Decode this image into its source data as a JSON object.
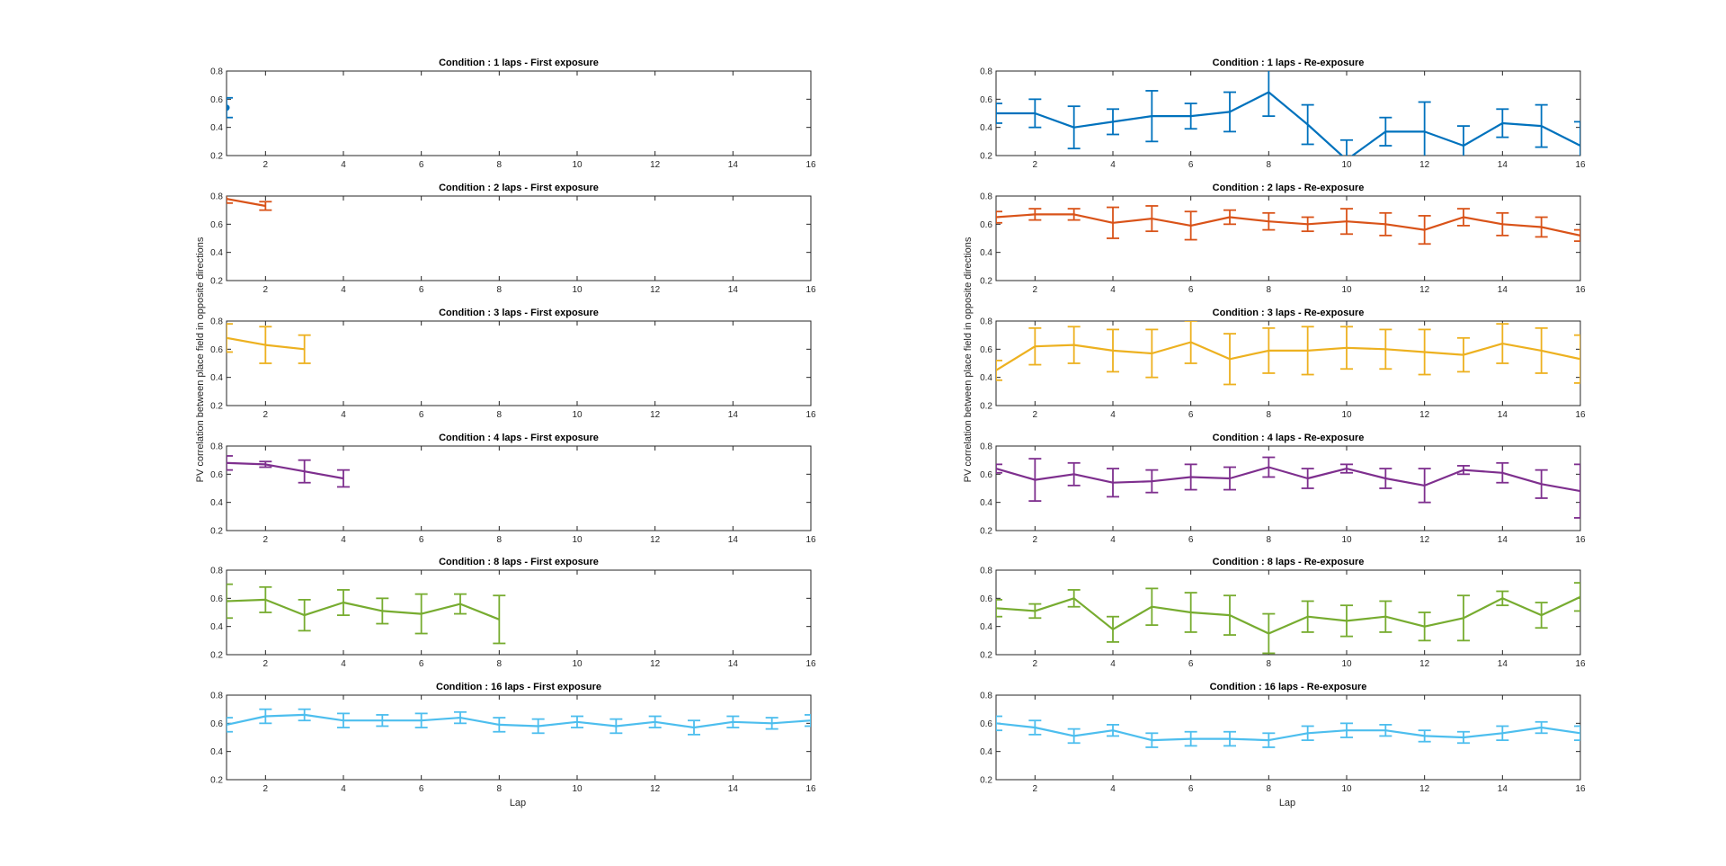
{
  "figure": {
    "ylabel": "PV correlation between place field in opposite directions",
    "xlabel": "Lap",
    "xlim": [
      1,
      16
    ],
    "ylim": [
      0.2,
      0.8
    ],
    "xticks": [
      2,
      4,
      6,
      8,
      10,
      12,
      14,
      16
    ],
    "yticks": [
      0.2,
      0.4,
      0.6,
      0.8
    ],
    "tick_labels_x": [
      "2",
      "4",
      "6",
      "8",
      "10",
      "12",
      "14",
      "16"
    ],
    "tick_labels_y": [
      "0.2",
      "0.4",
      "0.6",
      "0.8"
    ]
  },
  "chart_data": [
    {
      "type": "line",
      "title": "Condition : 1 laps - First exposure",
      "color": "#0072BD",
      "x": [
        1
      ],
      "y": [
        0.54
      ],
      "err": [
        0.07
      ],
      "xlim": [
        1,
        16
      ],
      "ylim": [
        0.2,
        0.8
      ]
    },
    {
      "type": "line",
      "title": "Condition : 1 laps - Re-exposure",
      "color": "#0072BD",
      "x": [
        1,
        2,
        3,
        4,
        5,
        6,
        7,
        8,
        9,
        10,
        11,
        12,
        13,
        14,
        15,
        16
      ],
      "y": [
        0.5,
        0.5,
        0.4,
        0.44,
        0.48,
        0.48,
        0.51,
        0.65,
        0.42,
        0.17,
        0.37,
        0.37,
        0.27,
        0.43,
        0.41,
        0.27
      ],
      "err": [
        0.07,
        0.1,
        0.15,
        0.09,
        0.18,
        0.09,
        0.14,
        0.17,
        0.14,
        0.14,
        0.1,
        0.21,
        0.14,
        0.1,
        0.15,
        0.17
      ],
      "xlim": [
        1,
        16
      ],
      "ylim": [
        0.2,
        0.8
      ]
    },
    {
      "type": "line",
      "title": "Condition : 2 laps - First exposure",
      "color": "#D95319",
      "x": [
        1,
        2
      ],
      "y": [
        0.78,
        0.73
      ],
      "err": [
        0.03,
        0.03
      ],
      "xlim": [
        1,
        16
      ],
      "ylim": [
        0.2,
        0.8
      ]
    },
    {
      "type": "line",
      "title": "Condition : 2 laps - Re-exposure",
      "color": "#D95319",
      "x": [
        1,
        2,
        3,
        4,
        5,
        6,
        7,
        8,
        9,
        10,
        11,
        12,
        13,
        14,
        15,
        16
      ],
      "y": [
        0.65,
        0.67,
        0.67,
        0.61,
        0.64,
        0.59,
        0.65,
        0.62,
        0.6,
        0.62,
        0.6,
        0.56,
        0.65,
        0.6,
        0.58,
        0.52
      ],
      "err": [
        0.04,
        0.04,
        0.04,
        0.11,
        0.09,
        0.1,
        0.05,
        0.06,
        0.05,
        0.09,
        0.08,
        0.1,
        0.06,
        0.08,
        0.07,
        0.04
      ],
      "xlim": [
        1,
        16
      ],
      "ylim": [
        0.2,
        0.8
      ]
    },
    {
      "type": "line",
      "title": "Condition : 3 laps - First exposure",
      "color": "#EDB120",
      "x": [
        1,
        2,
        3
      ],
      "y": [
        0.68,
        0.63,
        0.6
      ],
      "err": [
        0.1,
        0.13,
        0.1
      ],
      "xlim": [
        1,
        16
      ],
      "ylim": [
        0.2,
        0.8
      ]
    },
    {
      "type": "line",
      "title": "Condition : 3 laps - Re-exposure",
      "color": "#EDB120",
      "x": [
        1,
        2,
        3,
        4,
        5,
        6,
        7,
        8,
        9,
        10,
        11,
        12,
        13,
        14,
        15,
        16
      ],
      "y": [
        0.45,
        0.62,
        0.63,
        0.59,
        0.57,
        0.65,
        0.53,
        0.59,
        0.59,
        0.61,
        0.6,
        0.58,
        0.56,
        0.64,
        0.59,
        0.53
      ],
      "err": [
        0.07,
        0.13,
        0.13,
        0.15,
        0.17,
        0.15,
        0.18,
        0.16,
        0.17,
        0.15,
        0.14,
        0.16,
        0.12,
        0.14,
        0.16,
        0.17
      ],
      "xlim": [
        1,
        16
      ],
      "ylim": [
        0.2,
        0.8
      ]
    },
    {
      "type": "line",
      "title": "Condition : 4 laps - First exposure",
      "color": "#7E2F8E",
      "x": [
        1,
        2,
        3,
        4
      ],
      "y": [
        0.68,
        0.67,
        0.62,
        0.57
      ],
      "err": [
        0.05,
        0.02,
        0.08,
        0.06
      ],
      "xlim": [
        1,
        16
      ],
      "ylim": [
        0.2,
        0.8
      ]
    },
    {
      "type": "line",
      "title": "Condition : 4 laps - Re-exposure",
      "color": "#7E2F8E",
      "x": [
        1,
        2,
        3,
        4,
        5,
        6,
        7,
        8,
        9,
        10,
        11,
        12,
        13,
        14,
        15,
        16
      ],
      "y": [
        0.64,
        0.56,
        0.6,
        0.54,
        0.55,
        0.58,
        0.57,
        0.65,
        0.57,
        0.64,
        0.57,
        0.52,
        0.63,
        0.61,
        0.53,
        0.48
      ],
      "err": [
        0.03,
        0.15,
        0.08,
        0.1,
        0.08,
        0.09,
        0.08,
        0.07,
        0.07,
        0.03,
        0.07,
        0.12,
        0.03,
        0.07,
        0.1,
        0.19
      ],
      "xlim": [
        1,
        16
      ],
      "ylim": [
        0.2,
        0.8
      ]
    },
    {
      "type": "line",
      "title": "Condition : 8 laps - First exposure",
      "color": "#77AC30",
      "x": [
        1,
        2,
        3,
        4,
        5,
        6,
        7,
        8
      ],
      "y": [
        0.58,
        0.59,
        0.48,
        0.57,
        0.51,
        0.49,
        0.56,
        0.45
      ],
      "err": [
        0.12,
        0.09,
        0.11,
        0.09,
        0.09,
        0.14,
        0.07,
        0.17
      ],
      "xlim": [
        1,
        16
      ],
      "ylim": [
        0.2,
        0.8
      ]
    },
    {
      "type": "line",
      "title": "Condition : 8 laps - Re-exposure",
      "color": "#77AC30",
      "x": [
        1,
        2,
        3,
        4,
        5,
        6,
        7,
        8,
        9,
        10,
        11,
        12,
        13,
        14,
        15,
        16
      ],
      "y": [
        0.53,
        0.51,
        0.6,
        0.38,
        0.54,
        0.5,
        0.48,
        0.35,
        0.47,
        0.44,
        0.47,
        0.4,
        0.46,
        0.6,
        0.48,
        0.61
      ],
      "err": [
        0.06,
        0.05,
        0.06,
        0.09,
        0.13,
        0.14,
        0.14,
        0.14,
        0.11,
        0.11,
        0.11,
        0.1,
        0.16,
        0.05,
        0.09,
        0.1
      ],
      "xlim": [
        1,
        16
      ],
      "ylim": [
        0.2,
        0.8
      ]
    },
    {
      "type": "line",
      "title": "Condition : 16 laps - First exposure",
      "color": "#4DBEEE",
      "x": [
        1,
        2,
        3,
        4,
        5,
        6,
        7,
        8,
        9,
        10,
        11,
        12,
        13,
        14,
        15,
        16
      ],
      "y": [
        0.59,
        0.65,
        0.66,
        0.62,
        0.62,
        0.62,
        0.64,
        0.59,
        0.58,
        0.61,
        0.58,
        0.61,
        0.57,
        0.61,
        0.6,
        0.62
      ],
      "err": [
        0.05,
        0.05,
        0.04,
        0.05,
        0.04,
        0.05,
        0.04,
        0.05,
        0.05,
        0.04,
        0.05,
        0.04,
        0.05,
        0.04,
        0.04,
        0.04
      ],
      "xlim": [
        1,
        16
      ],
      "ylim": [
        0.2,
        0.8
      ]
    },
    {
      "type": "line",
      "title": "Condition : 16 laps - Re-exposure",
      "color": "#4DBEEE",
      "x": [
        1,
        2,
        3,
        4,
        5,
        6,
        7,
        8,
        9,
        10,
        11,
        12,
        13,
        14,
        15,
        16
      ],
      "y": [
        0.6,
        0.57,
        0.51,
        0.55,
        0.48,
        0.49,
        0.49,
        0.48,
        0.53,
        0.55,
        0.55,
        0.51,
        0.5,
        0.53,
        0.57,
        0.53
      ],
      "err": [
        0.05,
        0.05,
        0.05,
        0.04,
        0.05,
        0.05,
        0.05,
        0.05,
        0.05,
        0.05,
        0.04,
        0.04,
        0.04,
        0.05,
        0.04,
        0.05
      ],
      "xlim": [
        1,
        16
      ],
      "ylim": [
        0.2,
        0.8
      ]
    }
  ]
}
